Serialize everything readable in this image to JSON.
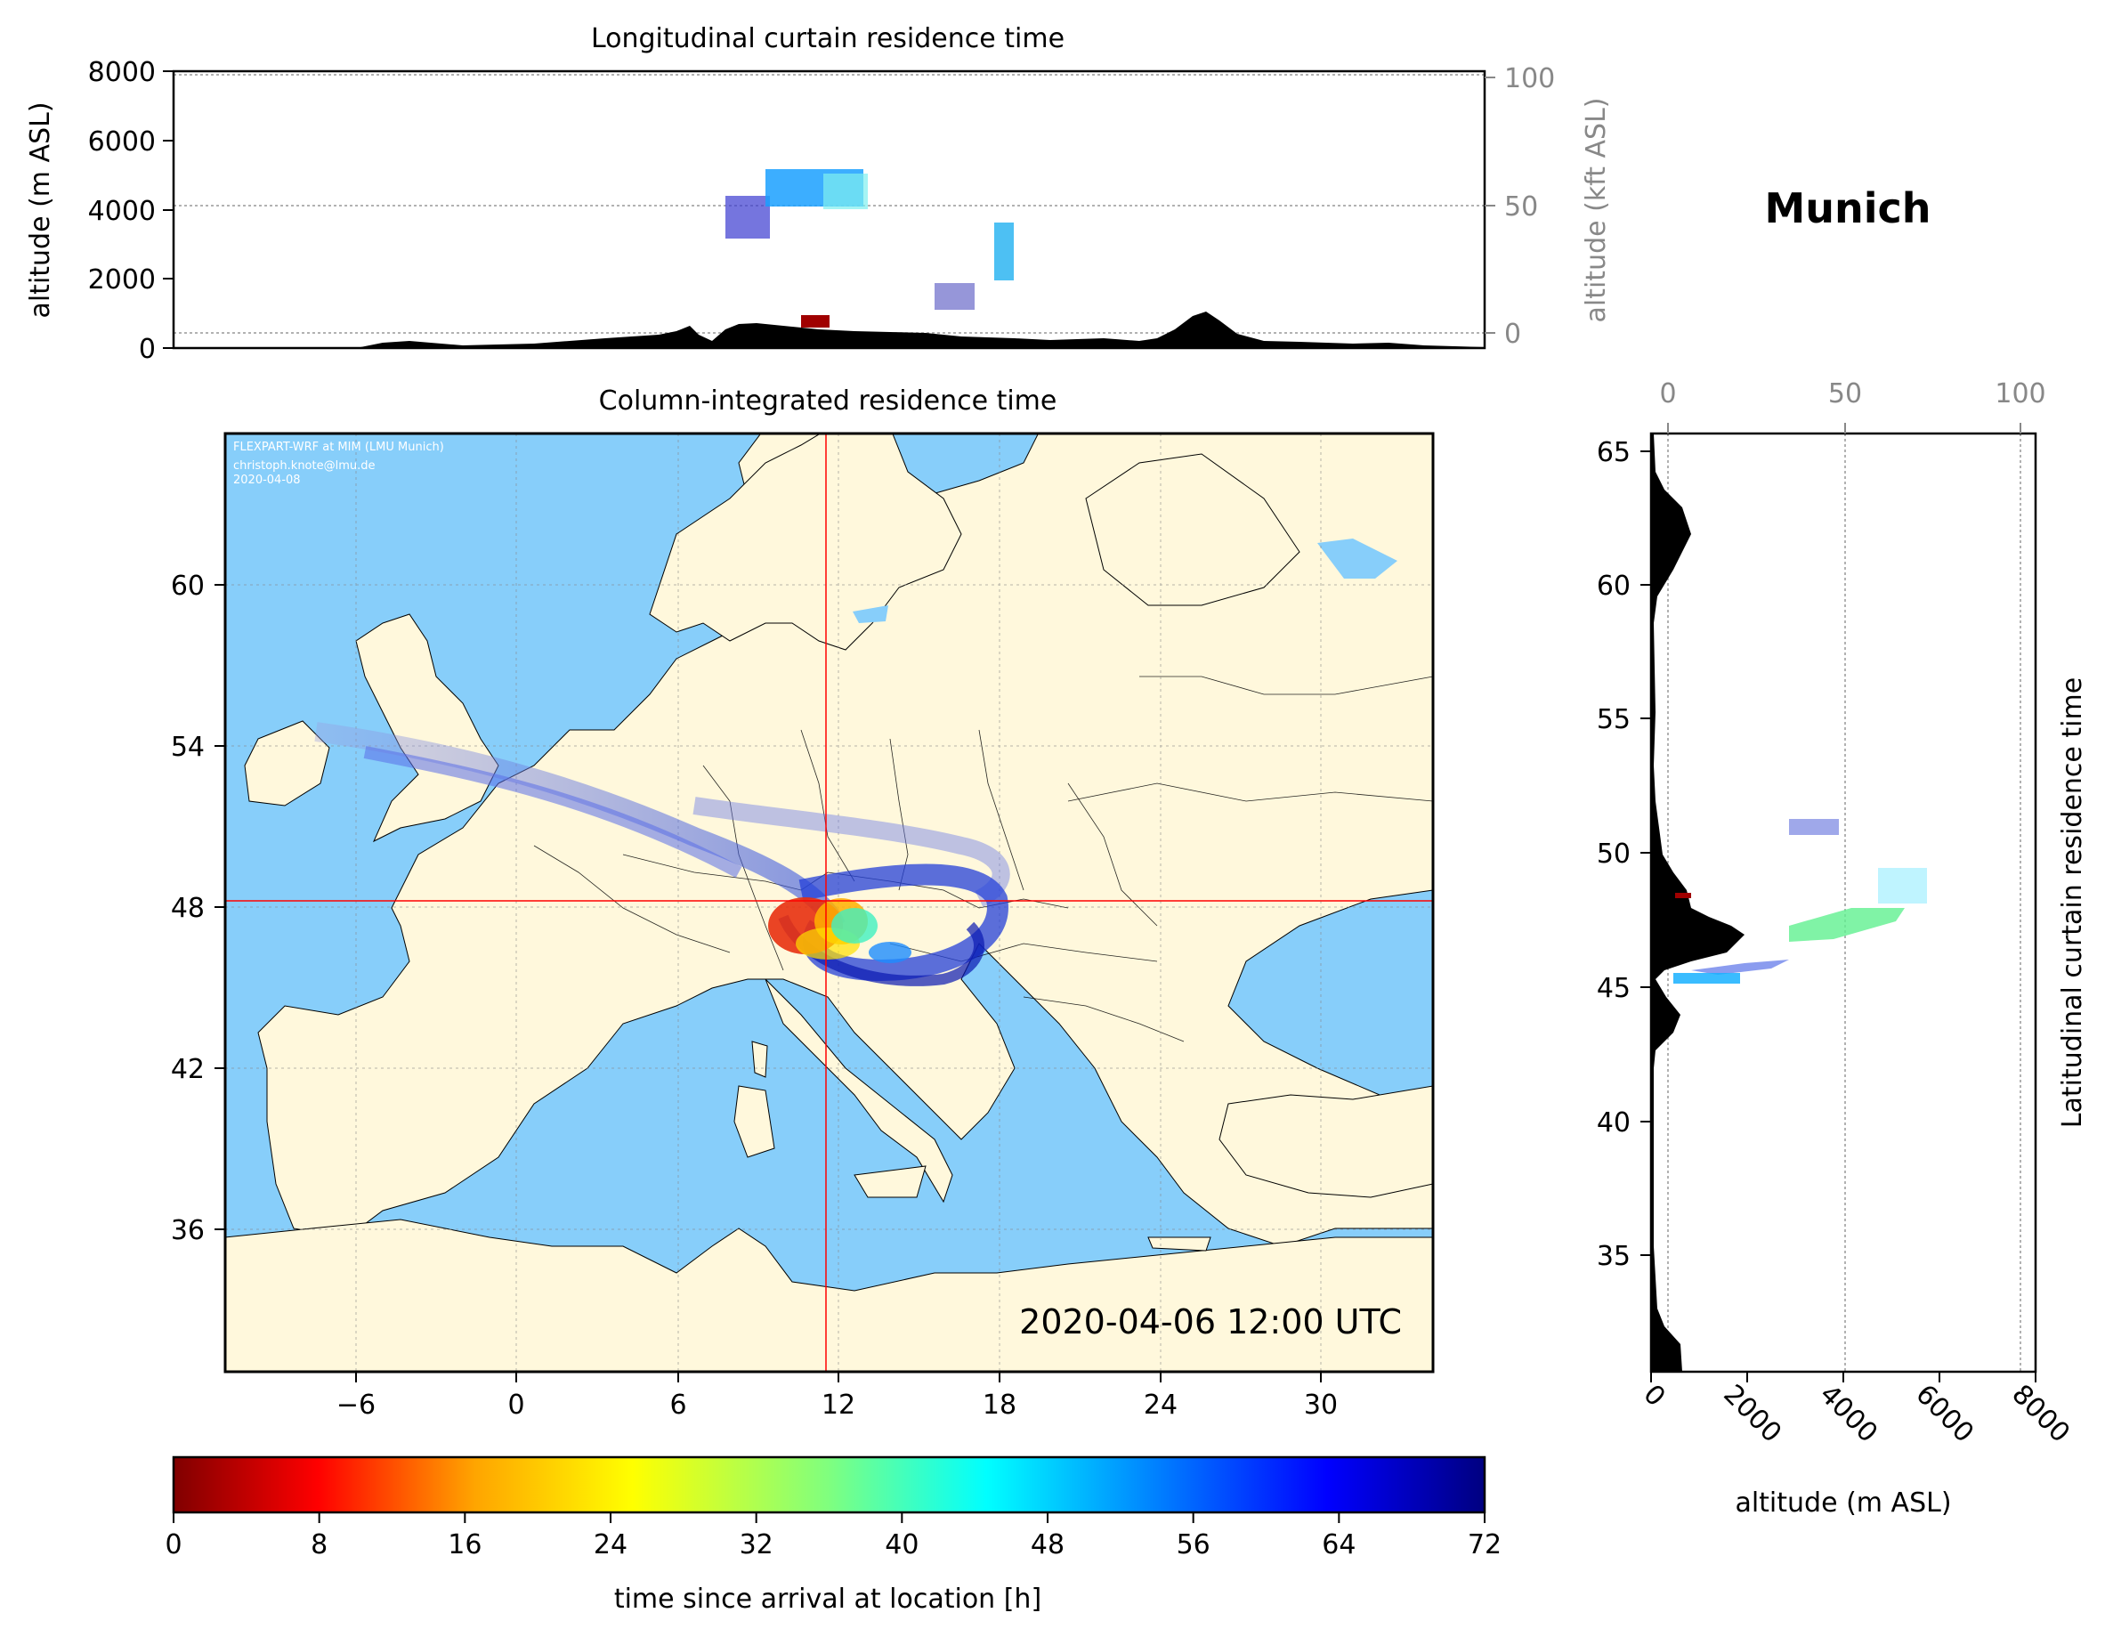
{
  "location": "Munich",
  "top_panel": {
    "title": "Longitudinal curtain residence time",
    "ylabel_left": "altitude (m ASL)",
    "ylabel_right": "altitude (kft ASL)",
    "yticks_left": [
      "0",
      "2000",
      "4000",
      "6000",
      "8000"
    ],
    "yticks_right": [
      "0",
      "50",
      "100"
    ]
  },
  "map_panel": {
    "title": "Column-integrated residence time",
    "credit_lines": [
      "FLEXPART-WRF at MIM (LMU Munich)",
      "christoph.knote@lmu.de",
      "2020-04-08"
    ],
    "timestamp": "2020-04-06 12:00 UTC",
    "xticks": [
      "−6",
      "0",
      "6",
      "12",
      "18",
      "24",
      "30"
    ],
    "yticks": [
      "60",
      "54",
      "48",
      "42",
      "36"
    ],
    "crosshair": {
      "lon": 11.6,
      "lat": 48.1
    }
  },
  "right_panel": {
    "title": "Latitudinal curtain residence time",
    "xlabel": "altitude (m ASL)",
    "xticks_bottom": [
      "0",
      "2000",
      "4000",
      "6000",
      "8000"
    ],
    "xticks_top": [
      "0",
      "50",
      "100"
    ],
    "yticks": [
      "65",
      "60",
      "55",
      "50",
      "45",
      "40",
      "35"
    ]
  },
  "colorbar": {
    "label": "time since arrival at location [h]",
    "ticks": [
      "0",
      "8",
      "16",
      "24",
      "32",
      "40",
      "48",
      "56",
      "64",
      "72"
    ],
    "min": 0,
    "max": 72,
    "colormap": "jet_r"
  },
  "colors": {
    "ocean": "#87cefa",
    "land": "#fff8dc",
    "crosshair": "#ff0000",
    "terrain": "#000000"
  }
}
